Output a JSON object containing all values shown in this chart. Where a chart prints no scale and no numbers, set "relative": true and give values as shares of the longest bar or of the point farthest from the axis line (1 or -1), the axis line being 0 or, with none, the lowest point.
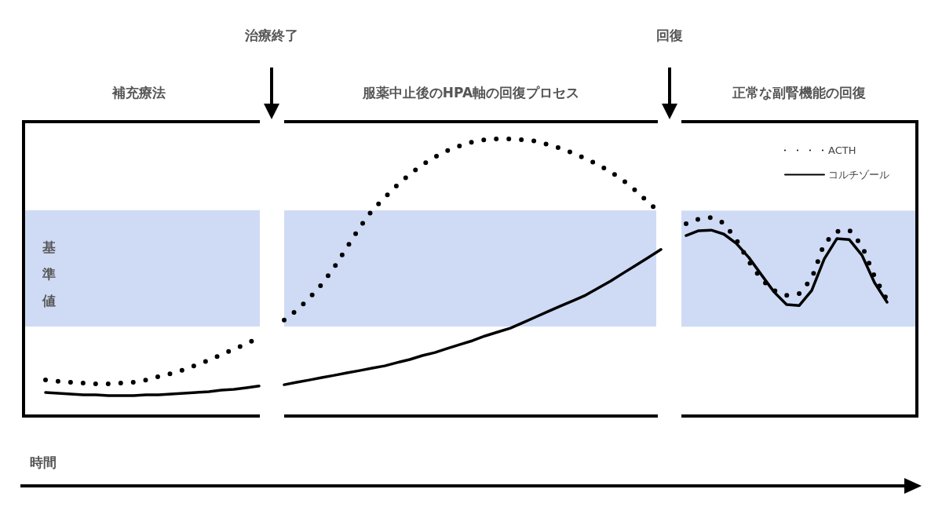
{
  "chart_data": [
    {
      "type": "line",
      "relative": true,
      "title": "補充療法",
      "xlabel": "時間",
      "annotations": [
        "治療終了"
      ],
      "categories": [
        null,
        null,
        null,
        null,
        null,
        null,
        null,
        null,
        null,
        null,
        null,
        null,
        null,
        null,
        null,
        null,
        null,
        null
      ],
      "series": [
        {
          "color": "#000000",
          "line_style": "dotted",
          "values": [
            0.459,
            0.442,
            0.431,
            0.42,
            0.41,
            0.41,
            0.42,
            0.431,
            0.459,
            0.502,
            0.541,
            0.59,
            0.65,
            0.71,
            0.781,
            0.852,
            0.922,
            1
          ]
        },
        {
          "color": "#000000",
          "line_style": "solid",
          "values": [
            0.3,
            0.29,
            0.279,
            0.269,
            0.269,
            0.261,
            0.261,
            0.261,
            0.269,
            0.269,
            0.279,
            0.29,
            0.3,
            0.311,
            0.329,
            0.339,
            0.36,
            0.382
          ]
        }
      ],
      "bands": [
        {
          "axis": "y",
          "from": 1.141,
          "to": 2.622,
          "label": "基準値",
          "color": "#cfdbf5"
        }
      ],
      "marker": "none"
    },
    {
      "type": "line",
      "relative": true,
      "title": "服薬中止後のHPA軸の回復プロセス",
      "annotations": [
        "回復"
      ],
      "categories": [
        null,
        null,
        null,
        null,
        null,
        null,
        null,
        null,
        null,
        null,
        null,
        null,
        null,
        null,
        null,
        null,
        null,
        null,
        null,
        null,
        null,
        null,
        null,
        null,
        null,
        null,
        null,
        null,
        null,
        null,
        null
      ],
      "series": [
        {
          "color": "#000000",
          "line_style": "dotted",
          "values": [
            0.346,
            0.382,
            0.425,
            0.476,
            0.538,
            0.609,
            0.68,
            0.742,
            0.788,
            0.833,
            0.873,
            0.907,
            0.935,
            0.958,
            0.975,
            0.989,
            0.997,
            1,
            1,
            0.997,
            0.992,
            0.98,
            0.966,
            0.949,
            0.929,
            0.907,
            0.881,
            0.85,
            0.813,
            0.771,
            0.731
          ]
        },
        {
          "color": "#000000",
          "line_style": "solid",
          "values": [
            0.113,
            0.122,
            0.13,
            0.139,
            0.147,
            0.156,
            0.164,
            0.173,
            0.181,
            0.193,
            0.204,
            0.218,
            0.229,
            0.244,
            0.258,
            0.272,
            0.289,
            0.303,
            0.317,
            0.337,
            0.357,
            0.377,
            0.397,
            0.416,
            0.436,
            0.462,
            0.487,
            0.516,
            0.544,
            0.572,
            0.601
          ]
        }
      ],
      "bands": [
        {
          "axis": "y",
          "from": 0.323,
          "to": 0.742,
          "color": "#cfdbf5"
        }
      ],
      "marker": "none"
    },
    {
      "type": "line",
      "relative": true,
      "title": "正常な副腎機能の回復",
      "categories": [
        null,
        null,
        null,
        null,
        null,
        null,
        null,
        null,
        null,
        null,
        null,
        null,
        null,
        null,
        null,
        null,
        null
      ],
      "series": [
        {
          "name": "ACTH",
          "color": "#000000",
          "line_style": "dotted",
          "values": [
            0.968,
            0.992,
            1,
            0.972,
            0.888,
            0.778,
            0.688,
            0.632,
            0.608,
            0.616,
            0.692,
            0.869,
            0.929,
            0.936,
            0.858,
            0.703,
            0.584
          ]
        },
        {
          "name": "コルチゾール",
          "color": "#000000",
          "line_style": "solid",
          "values": [
            0.909,
            0.933,
            0.936,
            0.916,
            0.869,
            0.798,
            0.711,
            0.625,
            0.561,
            0.556,
            0.632,
            0.791,
            0.893,
            0.888,
            0.81,
            0.672,
            0.573
          ]
        }
      ],
      "bands": [
        {
          "axis": "y",
          "from": 0.45,
          "to": 1.035,
          "color": "#cfdbf5"
        }
      ],
      "legend": "top right",
      "marker": "none"
    }
  ]
}
